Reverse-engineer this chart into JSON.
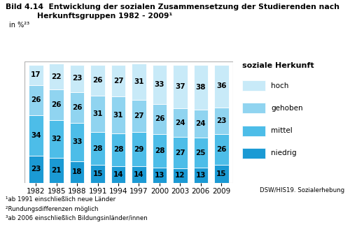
{
  "years": [
    "1982",
    "1985",
    "1988",
    "1991",
    "1994",
    "1997",
    "2000",
    "2003",
    "2006",
    "2009"
  ],
  "categories": [
    "niedrig",
    "mittel",
    "gehoben",
    "hoch"
  ],
  "values": {
    "niedrig": [
      23,
      21,
      18,
      15,
      14,
      14,
      13,
      12,
      13,
      15
    ],
    "mittel": [
      34,
      32,
      33,
      28,
      28,
      29,
      28,
      27,
      25,
      26
    ],
    "gehoben": [
      26,
      26,
      26,
      31,
      31,
      27,
      26,
      24,
      24,
      23
    ],
    "hoch": [
      17,
      22,
      23,
      26,
      27,
      31,
      33,
      37,
      38,
      36
    ]
  },
  "colors": {
    "niedrig": "#1b9ad4",
    "mittel": "#4dbde8",
    "gehoben": "#90d4f0",
    "hoch": "#c8eaf8"
  },
  "title_bild": "Bild 4.14",
  "title_main": "Entwicklung der sozialen Zusammensetzung der Studierenden nach",
  "title_sub": "Herkunftsgruppen 1982 - 2009¹",
  "subtitle": "in %²³",
  "legend_title": "soziale Herkunft",
  "legend_cats": [
    "hoch",
    "gehoben",
    "mittel",
    "niedrig"
  ],
  "source": "DSW/HIS19. Sozialerhebung",
  "footnotes": [
    "¹ab 1991 einschließlich neue Länder",
    "²Rundungsdifferenzen möglich",
    "³ab 2006 einschließlich Bildungsinländer/innen"
  ],
  "bar_width": 0.7
}
